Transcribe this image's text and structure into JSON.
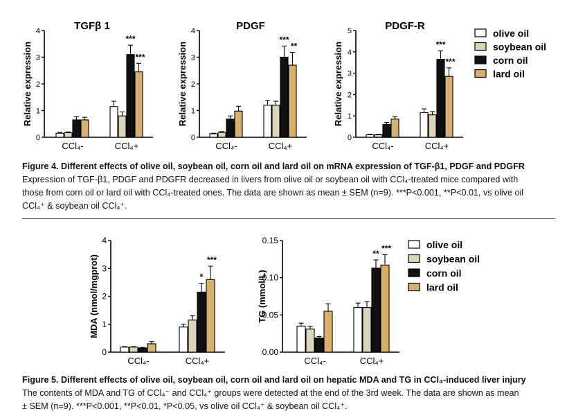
{
  "colors": {
    "olive oil": "#ffffff",
    "soybean oil": "#dcd6b8",
    "corn oil": "#111111",
    "lard oil": "#d9b16e"
  },
  "chart_data": [
    {
      "type": "bar",
      "id": "tgfb1",
      "title": "TGFβ 1",
      "ylabel": "Relative expression",
      "xlabel": "",
      "categories": [
        "CCl₄-",
        "CCl₄+"
      ],
      "ylim": [
        0,
        4
      ],
      "yticks": [
        0,
        1,
        2,
        3,
        4
      ],
      "ytick_labels": [
        "0",
        "1",
        "2",
        "3",
        "4"
      ],
      "series": [
        {
          "name": "olive oil",
          "values": [
            0.15,
            1.15
          ],
          "errors": [
            0.03,
            0.2
          ]
        },
        {
          "name": "soybean oil",
          "values": [
            0.17,
            0.8
          ],
          "errors": [
            0.03,
            0.15
          ]
        },
        {
          "name": "corn oil",
          "values": [
            0.65,
            3.1
          ],
          "errors": [
            0.12,
            0.35
          ]
        },
        {
          "name": "lard oil",
          "values": [
            0.65,
            2.45
          ],
          "errors": [
            0.1,
            0.32
          ]
        }
      ],
      "annotations": [
        {
          "category": 1,
          "series": 2,
          "text": "***"
        },
        {
          "category": 1,
          "series": 3,
          "text": "***"
        }
      ]
    },
    {
      "type": "bar",
      "id": "pdgf",
      "title": "PDGF",
      "ylabel": "Relative expression",
      "xlabel": "",
      "categories": [
        "CCl₄-",
        "CCl₄+"
      ],
      "ylim": [
        0,
        4
      ],
      "yticks": [
        0,
        1,
        2,
        3,
        4
      ],
      "ytick_labels": [
        "0",
        "1",
        "2",
        "3",
        "4"
      ],
      "series": [
        {
          "name": "olive oil",
          "values": [
            0.13,
            1.2
          ],
          "errors": [
            0.02,
            0.18
          ]
        },
        {
          "name": "soybean oil",
          "values": [
            0.18,
            1.2
          ],
          "errors": [
            0.03,
            0.15
          ]
        },
        {
          "name": "corn oil",
          "values": [
            0.68,
            3.0
          ],
          "errors": [
            0.12,
            0.42
          ]
        },
        {
          "name": "lard oil",
          "values": [
            0.98,
            2.7
          ],
          "errors": [
            0.18,
            0.48
          ]
        }
      ],
      "annotations": [
        {
          "category": 1,
          "series": 2,
          "text": "***"
        },
        {
          "category": 1,
          "series": 3,
          "text": "**"
        }
      ]
    },
    {
      "type": "bar",
      "id": "pdgfr",
      "title": "PDGF-R",
      "ylabel": "Relative expression",
      "xlabel": "",
      "categories": [
        "CCl₄-",
        "CCl₄+"
      ],
      "ylim": [
        0,
        5
      ],
      "yticks": [
        0,
        1,
        2,
        3,
        4,
        5
      ],
      "ytick_labels": [
        "0",
        "1",
        "2",
        "3",
        "4",
        "5"
      ],
      "series": [
        {
          "name": "olive oil",
          "values": [
            0.12,
            1.15
          ],
          "errors": [
            0.02,
            0.18
          ]
        },
        {
          "name": "soybean oil",
          "values": [
            0.12,
            1.05
          ],
          "errors": [
            0.02,
            0.15
          ]
        },
        {
          "name": "corn oil",
          "values": [
            0.6,
            3.65
          ],
          "errors": [
            0.1,
            0.4
          ]
        },
        {
          "name": "lard oil",
          "values": [
            0.85,
            2.85
          ],
          "errors": [
            0.12,
            0.4
          ]
        }
      ],
      "annotations": [
        {
          "category": 1,
          "series": 2,
          "text": "***"
        },
        {
          "category": 1,
          "series": 3,
          "text": "***"
        }
      ]
    },
    {
      "type": "bar",
      "id": "mda",
      "title": "",
      "ylabel": "MDA (nmol/mgprot)",
      "xlabel": "",
      "categories": [
        "CCl₄-",
        "CCl₄+"
      ],
      "ylim": [
        0,
        4
      ],
      "yticks": [
        0,
        1,
        2,
        3,
        4
      ],
      "ytick_labels": [
        "0",
        "1",
        "2",
        "3",
        "4"
      ],
      "series": [
        {
          "name": "olive oil",
          "values": [
            0.18,
            0.9
          ],
          "errors": [
            0.02,
            0.1
          ]
        },
        {
          "name": "soybean oil",
          "values": [
            0.18,
            1.15
          ],
          "errors": [
            0.02,
            0.15
          ]
        },
        {
          "name": "corn oil",
          "values": [
            0.15,
            2.15
          ],
          "errors": [
            0.02,
            0.32
          ]
        },
        {
          "name": "lard oil",
          "values": [
            0.3,
            2.6
          ],
          "errors": [
            0.08,
            0.48
          ]
        }
      ],
      "annotations": [
        {
          "category": 1,
          "series": 2,
          "text": "*"
        },
        {
          "category": 1,
          "series": 3,
          "text": "***"
        }
      ]
    },
    {
      "type": "bar",
      "id": "tg",
      "title": "",
      "ylabel": "TG (mmol/L)",
      "xlabel": "",
      "categories": [
        "CCl₄-",
        "CCl₄+"
      ],
      "ylim": [
        0,
        0.15
      ],
      "yticks": [
        0,
        0.05,
        0.1,
        0.15
      ],
      "ytick_labels": [
        "0.00",
        "0.05",
        "0.10",
        "0.15"
      ],
      "series": [
        {
          "name": "olive oil",
          "values": [
            0.035,
            0.06
          ],
          "errors": [
            0.004,
            0.006
          ]
        },
        {
          "name": "soybean oil",
          "values": [
            0.031,
            0.06
          ],
          "errors": [
            0.004,
            0.008
          ]
        },
        {
          "name": "corn oil",
          "values": [
            0.019,
            0.113
          ],
          "errors": [
            0.002,
            0.011
          ]
        },
        {
          "name": "lard oil",
          "values": [
            0.055,
            0.117
          ],
          "errors": [
            0.01,
            0.014
          ]
        }
      ],
      "annotations": [
        {
          "category": 1,
          "series": 2,
          "text": "**"
        },
        {
          "category": 1,
          "series": 3,
          "text": "***"
        }
      ]
    }
  ],
  "legend_top": [
    "olive oil",
    "soybean oil",
    "corn oil",
    "lard oil"
  ],
  "legend_bottom": [
    "olive oil",
    "soybean oil",
    "corn oil",
    "lard oil"
  ],
  "fig4": {
    "title": "Figure 4. Different effects of olive oil, soybean oil, corn oil and lard oil on mRNA expression of TGF-β1, PDGF and PDGFR",
    "line1": "Expression of TGF-β1, PDGF and PDGFR decreased in livers from olive oil or soybean oil with CCl₄-treated mice compared with",
    "line2": "those from corn oil or lard oil with CCl₄-treated ones. The data are shown as mean ± SEM (n=9). ***P<0.001, **P<0.01, vs olive oil",
    "line3": "CCl₄⁺ & soybean oil CCl₄⁺."
  },
  "fig5": {
    "title": "Figure 5. Different effects of olive oil, soybean oil, corn oil and lard oil on hepatic MDA and TG in CCl₄-induced liver injury",
    "line1": "The contents of MDA and TG of CCl₄⁻ and CCl₄⁺ groups were detected at the end of the 3rd week. The data are shown as mean",
    "line2": "± SEM (n=9). ***P<0.001, **P<0.01, *P<0.05, vs olive oil CCl₄⁺ & soybean oil CCl₄⁺."
  }
}
